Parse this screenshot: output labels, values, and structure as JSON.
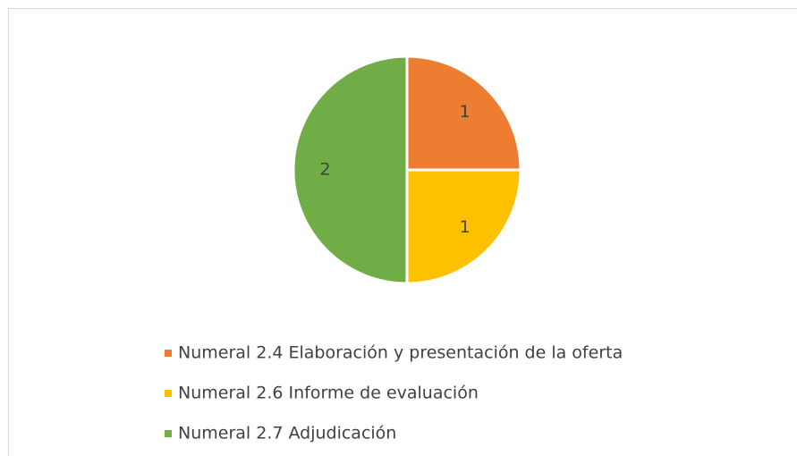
{
  "chart_data": {
    "type": "pie",
    "categories": [
      "Numeral 2.4 Elaboración y presentación de la oferta",
      "Numeral 2.6 Informe de evaluación",
      "Numeral 2.7 Adjudicación"
    ],
    "values": [
      1,
      1,
      2
    ],
    "colors": [
      "#ED7D31",
      "#FFC000",
      "#70AD47"
    ],
    "legend": "bottom"
  }
}
